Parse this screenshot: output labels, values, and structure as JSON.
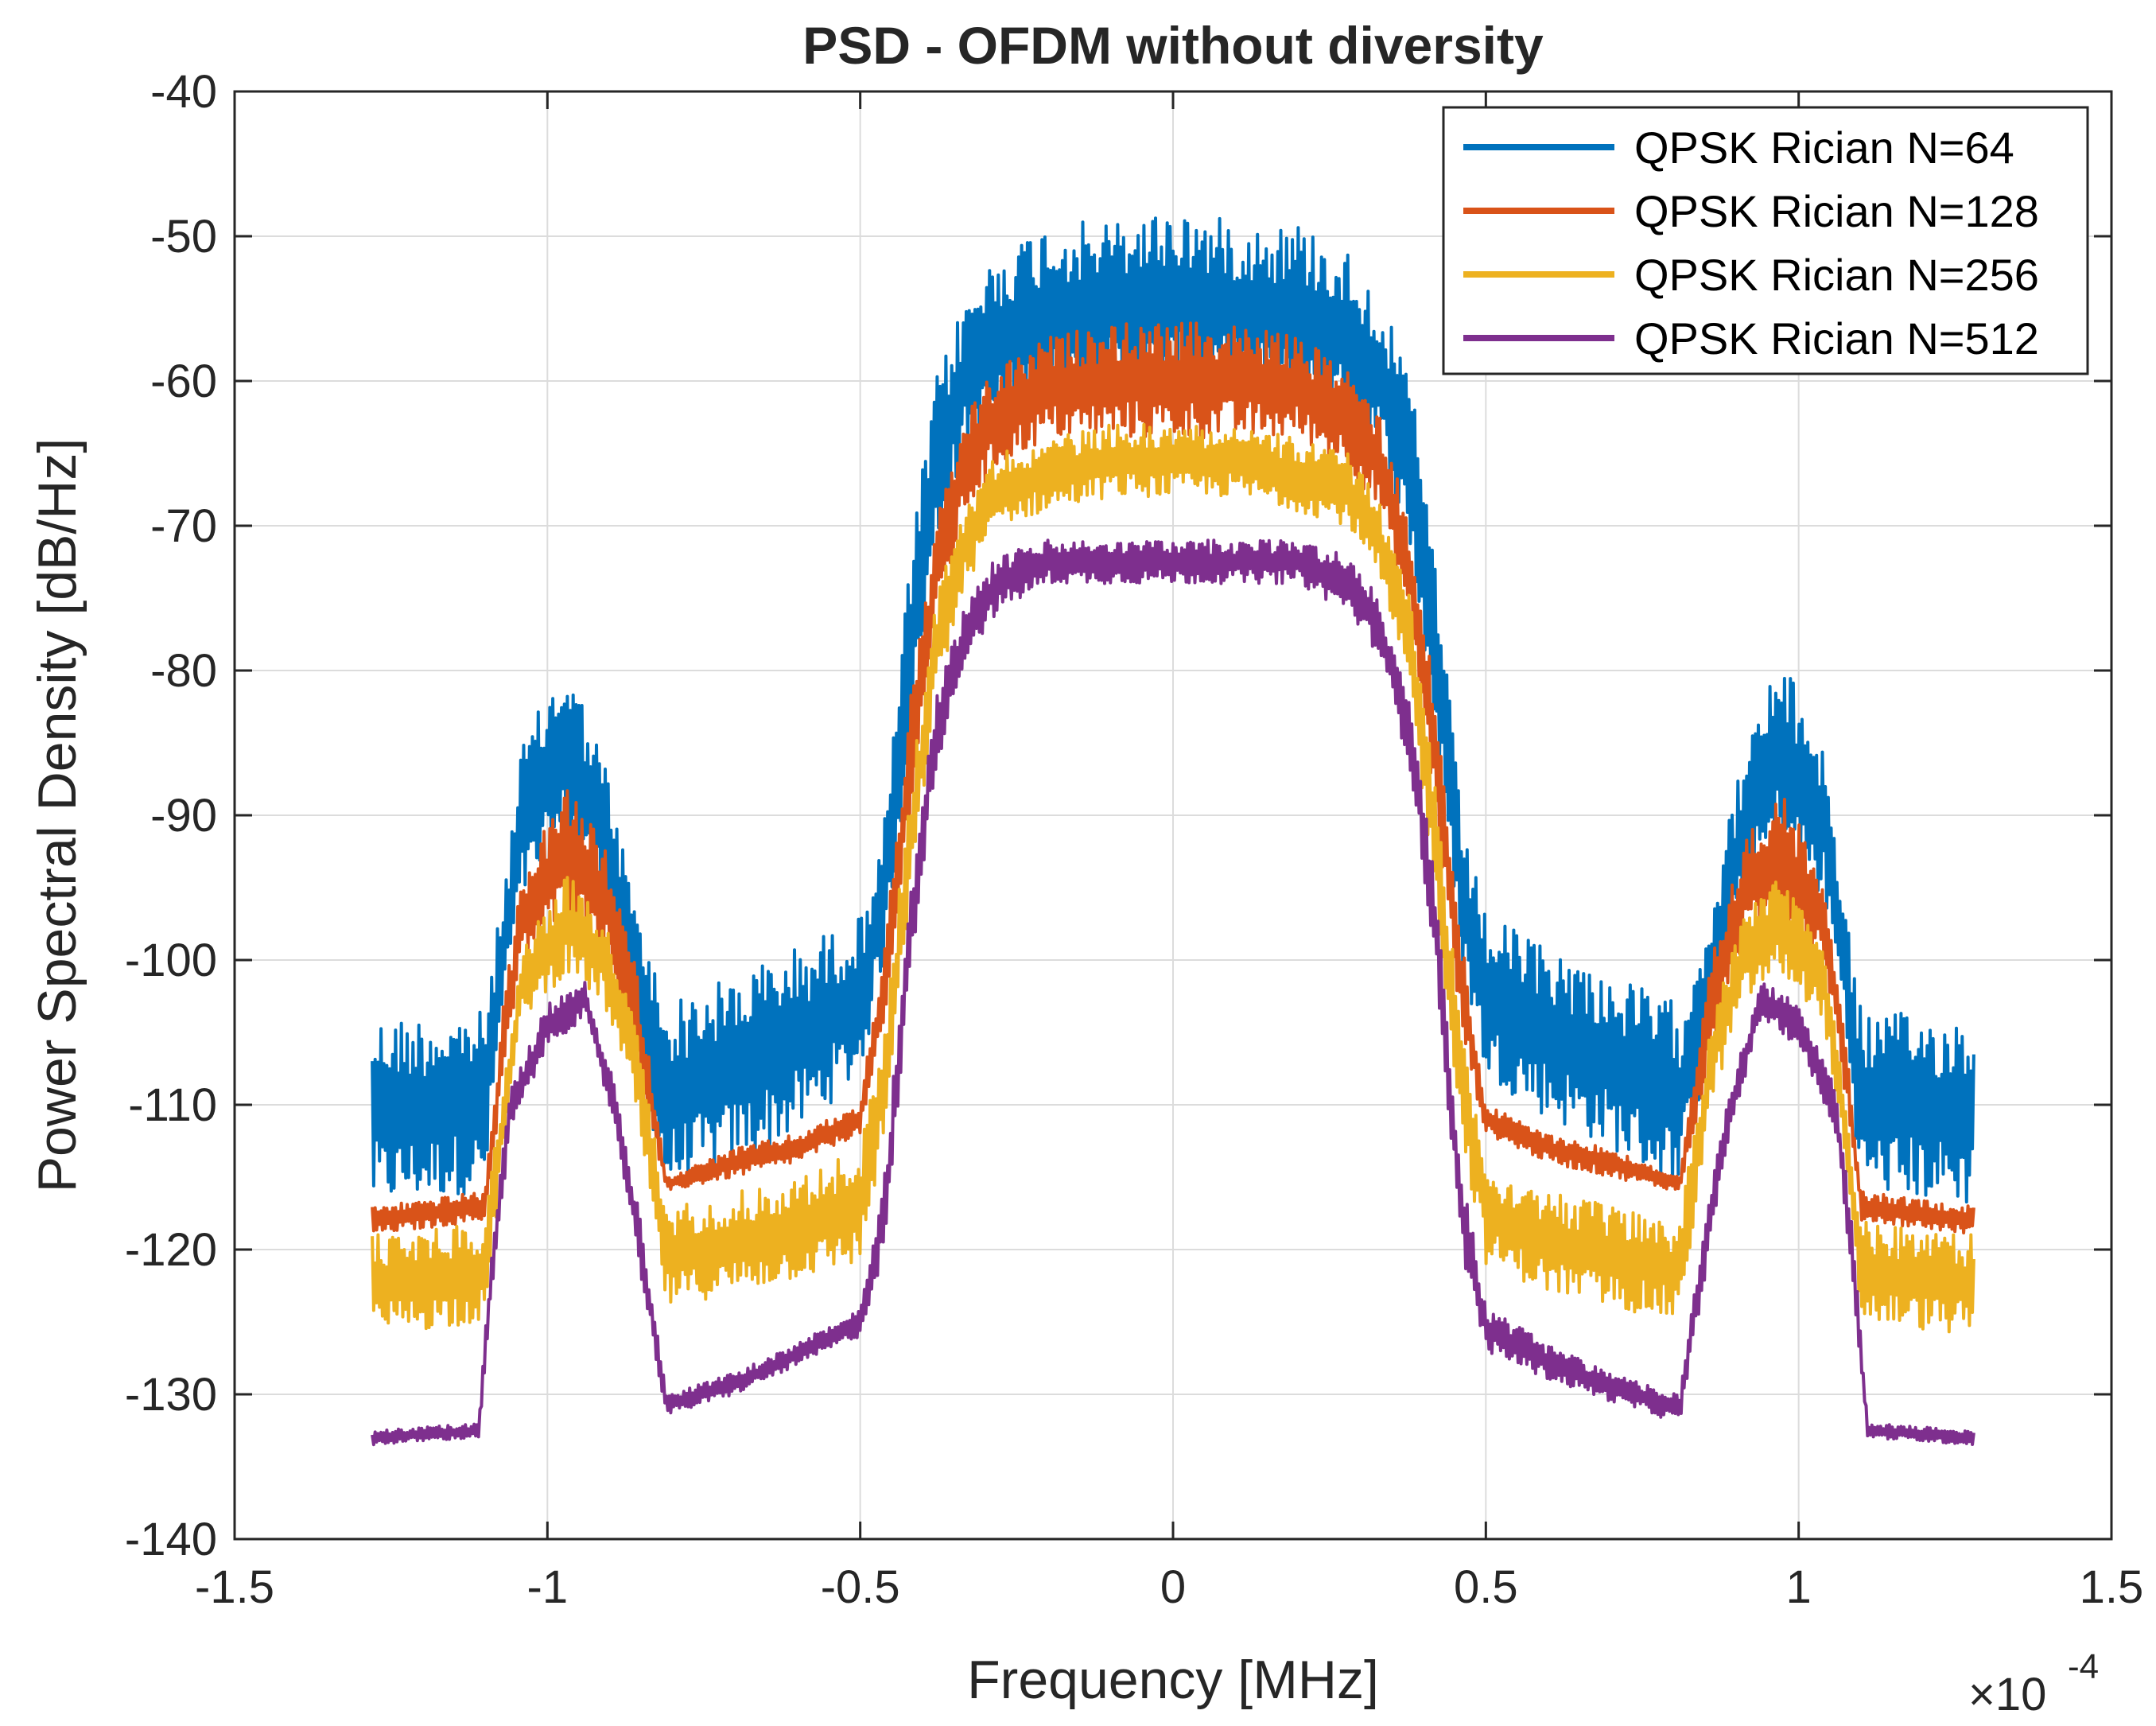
{
  "chart_data": {
    "type": "line",
    "title": "PSD - OFDM without diversity",
    "xlabel": "Frequency [MHz]",
    "ylabel": "Power Spectral Density [dB/Hz]",
    "x_exponent_label": "×10",
    "x_exponent_power": "-4",
    "xlim": [
      -1.5,
      1.5
    ],
    "ylim": [
      -140,
      -40
    ],
    "xticks": [
      -1.5,
      -1,
      -0.5,
      0,
      0.5,
      1,
      1.5
    ],
    "xtick_labels": [
      "-1.5",
      "-1",
      "-0.5",
      "0",
      "0.5",
      "1",
      "1.5"
    ],
    "yticks": [
      -40,
      -50,
      -60,
      -70,
      -80,
      -90,
      -100,
      -110,
      -120,
      -130,
      -140
    ],
    "ytick_labels": [
      "-40",
      "-50",
      "-60",
      "-70",
      "-80",
      "-90",
      "-100",
      "-110",
      "-120",
      "-130",
      "-140"
    ],
    "grid": true,
    "legend_position": "top-right",
    "x_range_data": [
      -1.28,
      1.28
    ],
    "envelope_keys": [
      "x",
      "low",
      "high"
    ],
    "series": [
      {
        "name": "QPSK Rician N=64",
        "color": "#0072BD",
        "envelope": [
          [
            -1.28,
            -117,
            -104
          ],
          [
            -1.1,
            -116,
            -103.5
          ],
          [
            -1.07,
            -103,
            -95
          ],
          [
            -1.04,
            -96,
            -85
          ],
          [
            -0.97,
            -92,
            -79
          ],
          [
            -0.91,
            -96,
            -86
          ],
          [
            -0.86,
            -106,
            -96
          ],
          [
            -0.81,
            -116,
            -103
          ],
          [
            -0.7,
            -114,
            -101
          ],
          [
            -0.6,
            -112,
            -99
          ],
          [
            -0.5,
            -108,
            -97
          ],
          [
            -0.46,
            -100,
            -90
          ],
          [
            -0.42,
            -85,
            -72
          ],
          [
            -0.38,
            -72,
            -60
          ],
          [
            -0.33,
            -65,
            -54
          ],
          [
            -0.28,
            -63,
            -51
          ],
          [
            -0.2,
            -62,
            -49
          ],
          [
            -0.1,
            -61,
            -49
          ],
          [
            0.0,
            -61,
            -48
          ],
          [
            0.1,
            -61,
            -49
          ],
          [
            0.2,
            -62,
            -49
          ],
          [
            0.28,
            -63,
            -51
          ],
          [
            0.33,
            -65,
            -54
          ],
          [
            0.38,
            -72,
            -60
          ],
          [
            0.42,
            -85,
            -72
          ],
          [
            0.46,
            -100,
            -90
          ],
          [
            0.5,
            -108,
            -97
          ],
          [
            0.6,
            -111,
            -99
          ],
          [
            0.7,
            -113,
            -101
          ],
          [
            0.81,
            -116,
            -103
          ],
          [
            0.86,
            -106,
            -96
          ],
          [
            0.91,
            -96,
            -86
          ],
          [
            0.97,
            -92,
            -79
          ],
          [
            1.04,
            -96,
            -85
          ],
          [
            1.07,
            -103,
            -95
          ],
          [
            1.1,
            -116,
            -103.5
          ],
          [
            1.28,
            -117,
            -104
          ]
        ]
      },
      {
        "name": "QPSK Rician N=128",
        "color": "#D95319",
        "envelope": [
          [
            -1.28,
            -119,
            -117
          ],
          [
            -1.1,
            -118,
            -116
          ],
          [
            -1.07,
            -108,
            -103
          ],
          [
            -1.04,
            -100,
            -94
          ],
          [
            -0.97,
            -97,
            -88
          ],
          [
            -0.91,
            -99,
            -92
          ],
          [
            -0.86,
            -107,
            -100
          ],
          [
            -0.81,
            -116,
            -115
          ],
          [
            -0.7,
            -115,
            -113
          ],
          [
            -0.6,
            -114,
            -112
          ],
          [
            -0.5,
            -112,
            -110
          ],
          [
            -0.46,
            -105,
            -98
          ],
          [
            -0.42,
            -90,
            -82
          ],
          [
            -0.38,
            -77,
            -70
          ],
          [
            -0.33,
            -69,
            -62
          ],
          [
            -0.28,
            -66,
            -59
          ],
          [
            -0.2,
            -64,
            -57
          ],
          [
            -0.1,
            -64,
            -56
          ],
          [
            0.0,
            -64,
            -56
          ],
          [
            0.1,
            -64,
            -56
          ],
          [
            0.2,
            -64,
            -57
          ],
          [
            0.28,
            -66,
            -59
          ],
          [
            0.33,
            -69,
            -62
          ],
          [
            0.38,
            -77,
            -70
          ],
          [
            0.42,
            -90,
            -82
          ],
          [
            0.46,
            -105,
            -98
          ],
          [
            0.5,
            -112,
            -110
          ],
          [
            0.6,
            -114,
            -112
          ],
          [
            0.7,
            -115,
            -113
          ],
          [
            0.81,
            -116,
            -115
          ],
          [
            0.86,
            -107,
            -100
          ],
          [
            0.91,
            -99,
            -92
          ],
          [
            0.97,
            -97,
            -88
          ],
          [
            1.04,
            -100,
            -94
          ],
          [
            1.07,
            -108,
            -103
          ],
          [
            1.1,
            -118,
            -116
          ],
          [
            1.28,
            -119,
            -117
          ]
        ]
      },
      {
        "name": "QPSK Rician N=256",
        "color": "#EDB120",
        "envelope": [
          [
            -1.28,
            -126,
            -119
          ],
          [
            -1.1,
            -125,
            -118
          ],
          [
            -1.07,
            -113,
            -108
          ],
          [
            -1.04,
            -104,
            -99
          ],
          [
            -0.97,
            -101,
            -94
          ],
          [
            -0.91,
            -103,
            -97
          ],
          [
            -0.86,
            -110,
            -104
          ],
          [
            -0.81,
            -124,
            -117
          ],
          [
            -0.7,
            -123,
            -116
          ],
          [
            -0.6,
            -122,
            -115
          ],
          [
            -0.5,
            -121,
            -113
          ],
          [
            -0.46,
            -112,
            -104
          ],
          [
            -0.42,
            -96,
            -88
          ],
          [
            -0.38,
            -82,
            -75
          ],
          [
            -0.33,
            -74,
            -68
          ],
          [
            -0.28,
            -70,
            -65
          ],
          [
            -0.2,
            -69,
            -64
          ],
          [
            -0.1,
            -68,
            -63
          ],
          [
            0.0,
            -68,
            -63
          ],
          [
            0.1,
            -68,
            -63
          ],
          [
            0.2,
            -69,
            -64
          ],
          [
            0.28,
            -70,
            -65
          ],
          [
            0.33,
            -74,
            -68
          ],
          [
            0.38,
            -82,
            -75
          ],
          [
            0.42,
            -96,
            -88
          ],
          [
            0.46,
            -112,
            -104
          ],
          [
            0.5,
            -121,
            -114
          ],
          [
            0.6,
            -123,
            -116
          ],
          [
            0.7,
            -124,
            -117
          ],
          [
            0.81,
            -125,
            -118
          ],
          [
            0.86,
            -110,
            -104
          ],
          [
            0.91,
            -103,
            -97
          ],
          [
            0.97,
            -101,
            -94
          ],
          [
            1.04,
            -104,
            -99
          ],
          [
            1.07,
            -113,
            -108
          ],
          [
            1.1,
            -125,
            -118
          ],
          [
            1.28,
            -126,
            -119
          ]
        ]
      },
      {
        "name": "QPSK Rician N=512",
        "color": "#7E2F8E",
        "envelope": [
          [
            -1.28,
            -133.5,
            -132.5
          ],
          [
            -1.11,
            -133,
            -132
          ],
          [
            -1.09,
            -124,
            -120
          ],
          [
            -1.06,
            -112,
            -109
          ],
          [
            -1.0,
            -106,
            -103
          ],
          [
            -0.94,
            -104,
            -101.5
          ],
          [
            -0.89,
            -112,
            -109
          ],
          [
            -0.85,
            -122,
            -118
          ],
          [
            -0.81,
            -131.5,
            -130
          ],
          [
            -0.7,
            -130,
            -128.5
          ],
          [
            -0.6,
            -128,
            -126.5
          ],
          [
            -0.5,
            -126,
            -124
          ],
          [
            -0.46,
            -120,
            -114
          ],
          [
            -0.42,
            -101,
            -95
          ],
          [
            -0.38,
            -87,
            -82
          ],
          [
            -0.33,
            -79,
            -75
          ],
          [
            -0.28,
            -76,
            -72
          ],
          [
            -0.2,
            -74,
            -71
          ],
          [
            -0.1,
            -74,
            -71
          ],
          [
            0.0,
            -74,
            -71
          ],
          [
            0.1,
            -74,
            -71
          ],
          [
            0.2,
            -74,
            -71
          ],
          [
            0.28,
            -76,
            -72
          ],
          [
            0.33,
            -79,
            -75
          ],
          [
            0.38,
            -87,
            -82
          ],
          [
            0.42,
            -101,
            -95
          ],
          [
            0.46,
            -120,
            -114
          ],
          [
            0.5,
            -127,
            -124
          ],
          [
            0.6,
            -129,
            -126.5
          ],
          [
            0.7,
            -130.5,
            -128.5
          ],
          [
            0.81,
            -132,
            -130
          ],
          [
            0.85,
            -122,
            -118
          ],
          [
            0.89,
            -112,
            -109
          ],
          [
            0.94,
            -104,
            -101.5
          ],
          [
            1.0,
            -106,
            -103
          ],
          [
            1.06,
            -112,
            -109
          ],
          [
            1.09,
            -124,
            -120
          ],
          [
            1.11,
            -133,
            -132
          ],
          [
            1.28,
            -133.5,
            -132.5
          ]
        ]
      }
    ]
  }
}
